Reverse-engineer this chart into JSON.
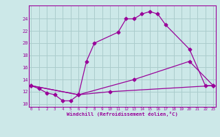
{
  "xlabel": "Windchill (Refroidissement éolien,°C)",
  "bg_color": "#cce8e8",
  "grid_color": "#aacccc",
  "line_color": "#990099",
  "x_ticks": [
    0,
    1,
    2,
    3,
    4,
    5,
    6,
    7,
    8,
    9,
    10,
    11,
    12,
    13,
    14,
    15,
    16,
    17,
    18,
    19,
    20,
    21,
    22,
    23
  ],
  "y_ticks": [
    10,
    12,
    14,
    16,
    18,
    20,
    22,
    24
  ],
  "xlim": [
    -0.3,
    23.3
  ],
  "ylim": [
    9.5,
    26.2
  ],
  "curve1": {
    "x": [
      0,
      1,
      2,
      3,
      4,
      5,
      6,
      7,
      8,
      11,
      12,
      13,
      14,
      15,
      16,
      17,
      20,
      22,
      23
    ],
    "y": [
      13.0,
      12.5,
      11.8,
      11.5,
      10.5,
      10.5,
      11.5,
      17.0,
      20.0,
      21.8,
      24.0,
      24.0,
      24.8,
      25.2,
      24.8,
      23.0,
      19.0,
      13.0,
      13.0
    ]
  },
  "curve2": {
    "x": [
      0,
      6,
      13,
      20,
      23
    ],
    "y": [
      13.0,
      11.5,
      14.0,
      17.0,
      13.0
    ]
  },
  "curve3": {
    "x": [
      0,
      6,
      10,
      23
    ],
    "y": [
      13.0,
      11.5,
      12.0,
      13.0
    ]
  }
}
